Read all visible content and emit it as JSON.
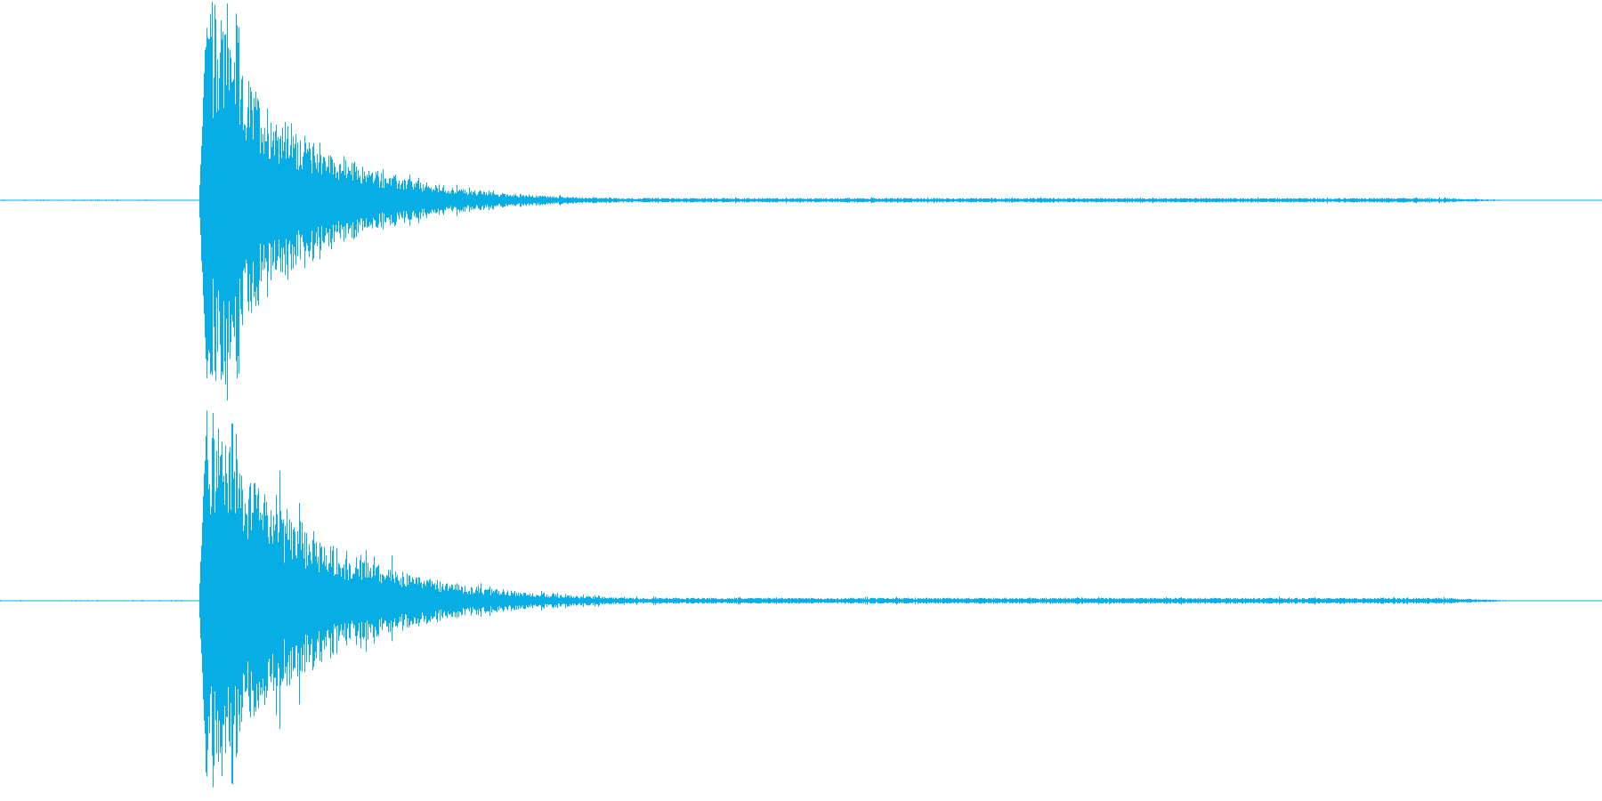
{
  "waveform": {
    "color": "#06aee5",
    "background": "#ffffff",
    "channels": [
      {
        "name": "left",
        "onset": 0.124,
        "attack_end": 0.129,
        "peak_amplitude": 1.0,
        "decay_rate": 7.2,
        "sustain_floor": 0.012,
        "fade_out": 0.9,
        "pre_noise": 0.004
      },
      {
        "name": "right",
        "onset": 0.124,
        "attack_end": 0.129,
        "peak_amplitude": 1.0,
        "decay_rate": 6.4,
        "sustain_floor": 0.016,
        "fade_out": 0.9,
        "pre_noise": 0.004
      }
    ]
  }
}
